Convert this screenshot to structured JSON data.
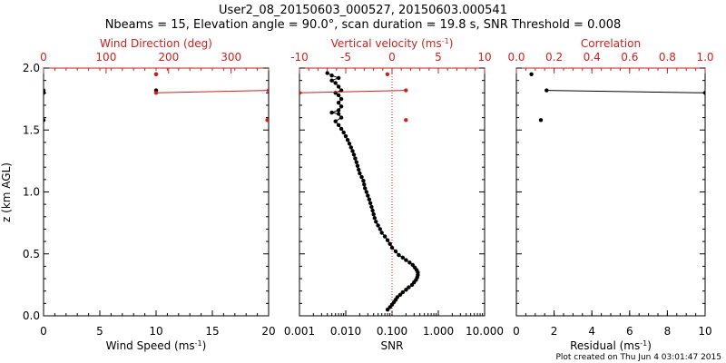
{
  "chart_data": {
    "type": "scatter",
    "title": "User2_08_20150603_000527, 20150603.000541",
    "subtitle": "Nbeams = 15, Elevation angle = 90.0°, scan duration = 19.8 s, SNR Threshold = 0.008",
    "footer": "Plot created on Thu Jun  4 03:01:47 2015",
    "ylabel": "z (km AGL)",
    "ylim": [
      0.0,
      2.0
    ],
    "yticks": [
      "0.0",
      "0.5",
      "1.0",
      "1.5",
      "2.0"
    ],
    "panels": [
      {
        "bottom_axis": {
          "label": "Wind Speed (ms",
          "label_sup": "-1",
          "label_end": ")",
          "lim": [
            0,
            20
          ],
          "ticks": [
            "0",
            "5",
            "10",
            "15",
            "20"
          ],
          "scale": "linear"
        },
        "top_axis": {
          "label": "Wind Direction (deg)",
          "lim": [
            0,
            360
          ],
          "ticks": [
            "0",
            "100",
            "200",
            "300"
          ],
          "scale": "linear",
          "color": "#c8221e"
        },
        "series": [
          {
            "name": "wind speed",
            "color": "#000000",
            "axis": "bottom",
            "connect": false,
            "points": [
              [
                0.0,
                1.8
              ],
              [
                0.0,
                1.82
              ],
              [
                0.0,
                1.58
              ],
              [
                10.0,
                1.82
              ],
              [
                10.0,
                1.95
              ]
            ]
          },
          {
            "name": "wind direction",
            "color": "#c8221e",
            "axis": "top",
            "connect": true,
            "points": [
              [
                180,
                1.8
              ],
              [
                360,
                1.82
              ]
            ]
          },
          {
            "name": "wind direction (single)",
            "color": "#c8221e",
            "axis": "top",
            "connect": false,
            "points": [
              [
                180,
                1.95
              ],
              [
                358,
                1.58
              ]
            ]
          }
        ]
      },
      {
        "bottom_axis": {
          "label": "SNR",
          "lim": [
            0.001,
            10.0
          ],
          "ticks": [
            "0.001",
            "0.010",
            "0.100",
            "1.000",
            "10.000"
          ],
          "scale": "log"
        },
        "top_axis": {
          "label": "Vertical velocity (ms",
          "label_sup": "-1",
          "label_end": ")",
          "lim": [
            -10,
            10
          ],
          "ticks": [
            "-10",
            "-5",
            "0",
            "5",
            "10"
          ],
          "scale": "linear",
          "color": "#c8221e"
        },
        "zero_line": {
          "axis": "top",
          "value": 0,
          "color": "#c8221e"
        },
        "series": [
          {
            "name": "SNR",
            "color": "#000000",
            "axis": "bottom",
            "connect": true,
            "points": [
              [
                0.08,
                0.05
              ],
              [
                0.09,
                0.07
              ],
              [
                0.1,
                0.09
              ],
              [
                0.11,
                0.11
              ],
              [
                0.12,
                0.13
              ],
              [
                0.13,
                0.15
              ],
              [
                0.15,
                0.17
              ],
              [
                0.17,
                0.19
              ],
              [
                0.2,
                0.21
              ],
              [
                0.23,
                0.23
              ],
              [
                0.27,
                0.25
              ],
              [
                0.3,
                0.27
              ],
              [
                0.33,
                0.29
              ],
              [
                0.35,
                0.31
              ],
              [
                0.36,
                0.33
              ],
              [
                0.36,
                0.35
              ],
              [
                0.34,
                0.37
              ],
              [
                0.31,
                0.39
              ],
              [
                0.28,
                0.41
              ],
              [
                0.24,
                0.43
              ],
              [
                0.2,
                0.45
              ],
              [
                0.17,
                0.47
              ],
              [
                0.14,
                0.49
              ],
              [
                0.12,
                0.52
              ],
              [
                0.1,
                0.55
              ],
              [
                0.09,
                0.58
              ],
              [
                0.08,
                0.61
              ],
              [
                0.07,
                0.64
              ],
              [
                0.06,
                0.67
              ],
              [
                0.055,
                0.7
              ],
              [
                0.05,
                0.73
              ],
              [
                0.045,
                0.76
              ],
              [
                0.042,
                0.79
              ],
              [
                0.04,
                0.82
              ],
              [
                0.038,
                0.85
              ],
              [
                0.036,
                0.88
              ],
              [
                0.034,
                0.91
              ],
              [
                0.032,
                0.94
              ],
              [
                0.03,
                0.97
              ],
              [
                0.028,
                1.0
              ],
              [
                0.026,
                1.03
              ],
              [
                0.025,
                1.06
              ],
              [
                0.024,
                1.09
              ],
              [
                0.022,
                1.12
              ],
              [
                0.02,
                1.15
              ],
              [
                0.019,
                1.18
              ],
              [
                0.018,
                1.21
              ],
              [
                0.017,
                1.24
              ],
              [
                0.016,
                1.27
              ],
              [
                0.015,
                1.3
              ],
              [
                0.014,
                1.33
              ],
              [
                0.013,
                1.36
              ],
              [
                0.012,
                1.39
              ],
              [
                0.011,
                1.42
              ],
              [
                0.01,
                1.45
              ],
              [
                0.009,
                1.48
              ],
              [
                0.008,
                1.51
              ],
              [
                0.007,
                1.54
              ],
              [
                0.006,
                1.57
              ],
              [
                0.008,
                1.6
              ],
              [
                0.007,
                1.63
              ],
              [
                0.005,
                1.64
              ],
              [
                0.007,
                1.66
              ],
              [
                0.008,
                1.69
              ],
              [
                0.007,
                1.72
              ],
              [
                0.008,
                1.75
              ],
              [
                0.007,
                1.78
              ],
              [
                0.006,
                1.8
              ],
              [
                0.008,
                1.82
              ],
              [
                0.007,
                1.85
              ],
              [
                0.006,
                1.88
              ],
              [
                0.005,
                1.9
              ],
              [
                0.007,
                1.92
              ],
              [
                0.005,
                1.94
              ],
              [
                0.004,
                1.96
              ]
            ]
          },
          {
            "name": "vertical velocity",
            "color": "#c8221e",
            "axis": "top",
            "connect": true,
            "points": [
              [
                -10,
                1.8
              ],
              [
                1.5,
                1.82
              ]
            ]
          },
          {
            "name": "vertical velocity (single)",
            "color": "#c8221e",
            "axis": "top",
            "connect": false,
            "points": [
              [
                -0.5,
                1.95
              ],
              [
                1.5,
                1.58
              ]
            ]
          }
        ]
      },
      {
        "bottom_axis": {
          "label": "Residual (ms",
          "label_sup": "-1",
          "label_end": ")",
          "lim": [
            0,
            10
          ],
          "ticks": [
            "0",
            "2",
            "4",
            "6",
            "8",
            "10"
          ],
          "scale": "linear"
        },
        "top_axis": {
          "label": "Correlation",
          "lim": [
            0.0,
            1.0
          ],
          "ticks": [
            "0.0",
            "0.2",
            "0.4",
            "0.6",
            "0.8",
            "1.0"
          ],
          "scale": "linear",
          "color": "#c8221e"
        },
        "series": [
          {
            "name": "residual",
            "color": "#000000",
            "axis": "bottom",
            "connect": true,
            "points": [
              [
                1.6,
                1.82
              ],
              [
                10.0,
                1.8
              ]
            ]
          },
          {
            "name": "residual (single)",
            "color": "#000000",
            "axis": "bottom",
            "connect": false,
            "points": [
              [
                0.8,
                1.95
              ],
              [
                1.3,
                1.58
              ]
            ]
          }
        ]
      }
    ]
  }
}
